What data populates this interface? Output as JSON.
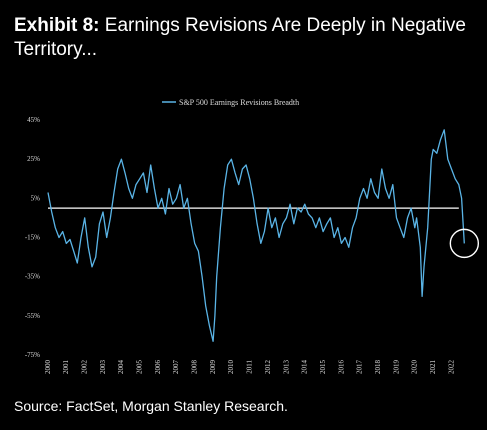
{
  "title": {
    "prefix": "Exhibit 8:",
    "text": " Earnings Revisions Are Deeply in Negative Territory..."
  },
  "source": "Source: FactSet, Morgan Stanley Research.",
  "colors": {
    "background": "#000000",
    "line": "#5ab4e6",
    "reference": "#ffffff",
    "text": "#ffffff"
  },
  "chart_data": {
    "type": "line",
    "legend": "S&P 500 Earnings Revisions Breadth",
    "legend_position": "top-center",
    "grid": false,
    "xlabel": "",
    "ylabel": "",
    "xlim": [
      2000,
      2022.9
    ],
    "ylim": [
      -75,
      45
    ],
    "y_ticks": [
      "45%",
      "25%",
      "5%",
      "-15%",
      "-35%",
      "-55%",
      "-75%"
    ],
    "y_tick_values": [
      45,
      25,
      5,
      -15,
      -35,
      -55,
      -75
    ],
    "x_ticks": [
      "2000",
      "2001",
      "2002",
      "2003",
      "2004",
      "2005",
      "2006",
      "2007",
      "2008",
      "2009",
      "2010",
      "2011",
      "2012",
      "2013",
      "2014",
      "2015",
      "2016",
      "2017",
      "2018",
      "2019",
      "2020",
      "2021",
      "2022"
    ],
    "reference_line": 0,
    "highlight_circle": {
      "x": 2022.7,
      "y": -18
    },
    "series": [
      {
        "name": "S&P 500 Earnings Revisions Breadth",
        "x": [
          2000.0,
          2000.2,
          2000.4,
          2000.6,
          2000.8,
          2001.0,
          2001.2,
          2001.4,
          2001.6,
          2001.8,
          2002.0,
          2002.2,
          2002.4,
          2002.6,
          2002.8,
          2003.0,
          2003.2,
          2003.4,
          2003.6,
          2003.8,
          2004.0,
          2004.2,
          2004.4,
          2004.6,
          2004.8,
          2005.0,
          2005.2,
          2005.4,
          2005.6,
          2005.8,
          2006.0,
          2006.2,
          2006.4,
          2006.6,
          2006.8,
          2007.0,
          2007.2,
          2007.4,
          2007.6,
          2007.8,
          2008.0,
          2008.2,
          2008.4,
          2008.6,
          2008.8,
          2009.0,
          2009.1,
          2009.2,
          2009.4,
          2009.6,
          2009.8,
          2010.0,
          2010.2,
          2010.4,
          2010.6,
          2010.8,
          2011.0,
          2011.2,
          2011.4,
          2011.6,
          2011.8,
          2012.0,
          2012.2,
          2012.4,
          2012.6,
          2012.8,
          2013.0,
          2013.2,
          2013.4,
          2013.6,
          2013.8,
          2014.0,
          2014.2,
          2014.4,
          2014.6,
          2014.8,
          2015.0,
          2015.2,
          2015.4,
          2015.6,
          2015.8,
          2016.0,
          2016.2,
          2016.4,
          2016.6,
          2016.8,
          2017.0,
          2017.2,
          2017.4,
          2017.6,
          2017.8,
          2018.0,
          2018.2,
          2018.4,
          2018.6,
          2018.8,
          2019.0,
          2019.2,
          2019.4,
          2019.6,
          2019.8,
          2020.0,
          2020.1,
          2020.3,
          2020.4,
          2020.5,
          2020.7,
          2020.9,
          2021.0,
          2021.2,
          2021.4,
          2021.6,
          2021.8,
          2022.0,
          2022.2,
          2022.4,
          2022.55,
          2022.7
        ],
        "y": [
          8,
          -2,
          -10,
          -15,
          -12,
          -18,
          -16,
          -22,
          -28,
          -15,
          -5,
          -20,
          -30,
          -25,
          -8,
          -2,
          -15,
          -5,
          8,
          20,
          25,
          18,
          10,
          5,
          12,
          15,
          18,
          8,
          22,
          10,
          0,
          5,
          -3,
          10,
          2,
          5,
          12,
          0,
          5,
          -8,
          -18,
          -22,
          -35,
          -50,
          -60,
          -68,
          -55,
          -35,
          -10,
          10,
          22,
          25,
          18,
          12,
          20,
          22,
          15,
          5,
          -8,
          -18,
          -12,
          0,
          -10,
          -5,
          -15,
          -8,
          -5,
          2,
          -8,
          0,
          -2,
          2,
          -3,
          -5,
          -10,
          -5,
          -12,
          -8,
          -5,
          -15,
          -10,
          -18,
          -15,
          -20,
          -10,
          -5,
          5,
          10,
          5,
          15,
          8,
          5,
          20,
          10,
          5,
          12,
          -5,
          -10,
          -15,
          -5,
          0,
          -10,
          -5,
          -20,
          -45,
          -30,
          -10,
          25,
          30,
          28,
          35,
          40,
          25,
          20,
          15,
          12,
          5,
          -18
        ]
      }
    ]
  }
}
